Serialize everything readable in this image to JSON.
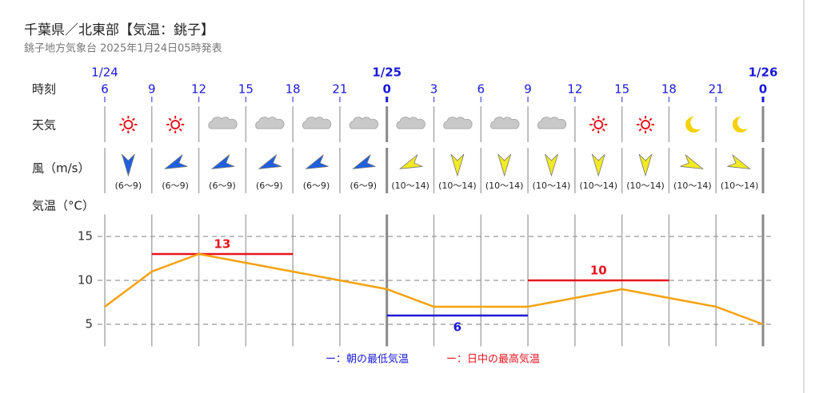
{
  "header": {
    "title": "千葉県／北東部【気温：銚子】",
    "subtitle": "銚子地方気象台 2025年1月24日05時発表"
  },
  "chart_data": {
    "type": "line",
    "row_labels": {
      "time": "時刻",
      "weather": "天気",
      "wind": "風（m/s）",
      "temp": "気温（°C）"
    },
    "x": [
      0,
      3,
      6,
      9,
      12,
      15,
      18,
      21,
      24,
      27,
      30,
      33,
      36,
      39,
      42
    ],
    "values": [
      7,
      11,
      13,
      12,
      11,
      10,
      9,
      7,
      7,
      7,
      8,
      9,
      8,
      7,
      5
    ],
    "color": "#f5a20f",
    "xlim": [
      0,
      42
    ],
    "xticks": [
      {
        "value": 0,
        "label": "6"
      },
      {
        "value": 3,
        "label": "9"
      },
      {
        "value": 6,
        "label": "12"
      },
      {
        "value": 9,
        "label": "15"
      },
      {
        "value": 12,
        "label": "18"
      },
      {
        "value": 15,
        "label": "21"
      },
      {
        "value": 18,
        "label": "0"
      },
      {
        "value": 21,
        "label": "3"
      },
      {
        "value": 24,
        "label": "6"
      },
      {
        "value": 27,
        "label": "9"
      },
      {
        "value": 30,
        "label": "12"
      },
      {
        "value": 33,
        "label": "15"
      },
      {
        "value": 36,
        "label": "18"
      },
      {
        "value": 39,
        "label": "21"
      },
      {
        "value": 42,
        "label": "0"
      }
    ],
    "date_ticks": [
      {
        "value": 0,
        "label": "1/24"
      },
      {
        "value": 18,
        "label": "1/25"
      },
      {
        "value": 42,
        "label": "1/26"
      }
    ],
    "weather_icons": [
      "sun",
      "sun",
      "cloud",
      "cloud",
      "cloud",
      "cloud",
      "cloud",
      "cloud",
      "cloud",
      "cloud",
      "sun",
      "sun",
      "moon",
      "moon"
    ],
    "wind": {
      "from_deg": [
        0,
        67.5,
        67.5,
        67.5,
        67.5,
        67.5,
        67.5,
        0,
        0,
        0,
        0,
        0,
        292.5,
        292.5
      ],
      "colors": [
        "#1f5fe0",
        "#1f5fe0",
        "#1f5fe0",
        "#1f5fe0",
        "#1f5fe0",
        "#1f5fe0",
        "#f2ea22",
        "#f2ea22",
        "#f2ea22",
        "#f2ea22",
        "#f2ea22",
        "#f2ea22",
        "#f2ea22",
        "#f2ea22"
      ],
      "value_labels": [
        "(6〜9)",
        "(6〜9)",
        "(6〜9)",
        "(6〜9)",
        "(6〜9)",
        "(6〜9)",
        "(10〜14)",
        "(10〜14)",
        "(10〜14)",
        "(10〜14)",
        "(10〜14)",
        "(10〜14)",
        "(10〜14)",
        "(10〜14)"
      ]
    },
    "ylim": [
      2.5,
      17.5
    ],
    "yticks": [
      5,
      10,
      15
    ],
    "grid": true,
    "series": [
      {
        "name": "ー：朝の最低気温",
        "color": "#1a1ad8",
        "values": [
          6
        ],
        "x": [
          [
            18,
            27
          ]
        ]
      },
      {
        "name": "ー：日中の最高気温",
        "color": "#e8141e",
        "values": [
          13,
          10
        ],
        "x": [
          [
            3,
            12
          ],
          [
            27,
            36
          ]
        ]
      }
    ]
  }
}
